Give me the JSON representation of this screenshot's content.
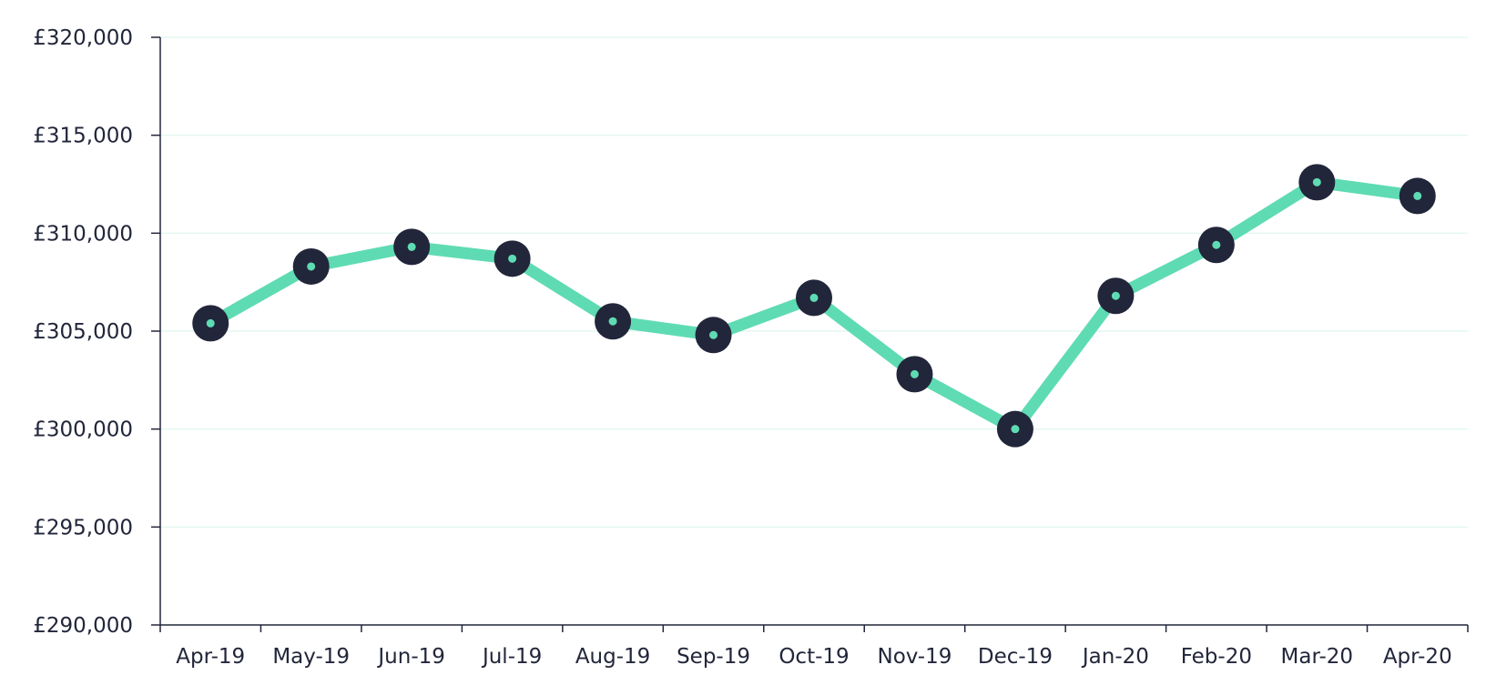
{
  "chart_data": {
    "type": "line",
    "title": "",
    "xlabel": "",
    "ylabel": "",
    "categories": [
      "Apr-19",
      "May-19",
      "Jun-19",
      "Jul-19",
      "Aug-19",
      "Sep-19",
      "Oct-19",
      "Nov-19",
      "Dec-19",
      "Jan-20",
      "Feb-20",
      "Mar-20",
      "Apr-20"
    ],
    "series": [
      {
        "values": [
          305400,
          308300,
          309300,
          308700,
          305500,
          304800,
          306700,
          302800,
          300000,
          306800,
          309400,
          312600,
          311900
        ]
      }
    ],
    "ylim": [
      290000,
      320000
    ],
    "yticks": [
      290000,
      295000,
      300000,
      305000,
      310000,
      315000,
      320000
    ],
    "ytick_labels": [
      "£290,000",
      "£295,000",
      "£300,000",
      "£305,000",
      "£310,000",
      "£315,000",
      "£320,000"
    ],
    "grid": true,
    "legend": "none",
    "colors": {
      "line": "#5fdbb3",
      "marker_outer": "#22263a",
      "marker_inner": "#5fdbb3",
      "grid": "#e3f7f0",
      "axis": "#22263a",
      "text": "#22263a"
    }
  }
}
